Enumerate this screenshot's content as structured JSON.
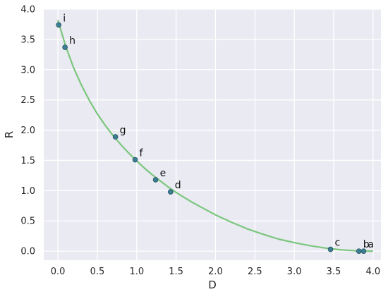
{
  "chart_data": {
    "type": "scatter",
    "title": "",
    "xlabel": "D",
    "ylabel": "R",
    "xlim": [
      -0.18,
      4.1
    ],
    "ylim": [
      -0.15,
      4.0
    ],
    "grid": true,
    "xticks": [
      "0.0",
      "0.5",
      "1.0",
      "1.5",
      "2.0",
      "2.5",
      "3.0",
      "3.5",
      "4.0"
    ],
    "yticks": [
      "0.0",
      "0.5",
      "1.0",
      "1.5",
      "2.0",
      "2.5",
      "3.0",
      "3.5",
      "4.0"
    ],
    "points": [
      {
        "label": "a",
        "x": 3.88,
        "y": 0.0
      },
      {
        "label": "b",
        "x": 3.82,
        "y": 0.0
      },
      {
        "label": "c",
        "x": 3.46,
        "y": 0.03
      },
      {
        "label": "d",
        "x": 1.43,
        "y": 0.98
      },
      {
        "label": "e",
        "x": 1.24,
        "y": 1.18
      },
      {
        "label": "f",
        "x": 0.98,
        "y": 1.51
      },
      {
        "label": "g",
        "x": 0.73,
        "y": 1.89
      },
      {
        "label": "h",
        "x": 0.09,
        "y": 3.37
      },
      {
        "label": "i",
        "x": 0.01,
        "y": 3.74
      }
    ],
    "curve": {
      "x": [
        0.0,
        0.1,
        0.2,
        0.3,
        0.4,
        0.5,
        0.6,
        0.7,
        0.8,
        0.9,
        1.0,
        1.1,
        1.2,
        1.3,
        1.4,
        1.5,
        1.6,
        1.7,
        1.8,
        1.9,
        2.0,
        2.2,
        2.4,
        2.6,
        2.8,
        3.0,
        3.2,
        3.4,
        3.6,
        3.8,
        4.0
      ],
      "y": [
        3.82,
        3.38,
        3.03,
        2.74,
        2.49,
        2.27,
        2.08,
        1.91,
        1.76,
        1.62,
        1.49,
        1.37,
        1.26,
        1.16,
        1.06,
        0.97,
        0.89,
        0.81,
        0.74,
        0.67,
        0.6,
        0.48,
        0.37,
        0.28,
        0.2,
        0.14,
        0.09,
        0.05,
        0.02,
        0.005,
        0.0
      ]
    },
    "colors": {
      "background": "#eaeaf2",
      "grid": "#ffffff",
      "curve": "#7bc67e",
      "marker_fill": "#3c7f95",
      "marker_edge": "#1f4f5c"
    }
  }
}
